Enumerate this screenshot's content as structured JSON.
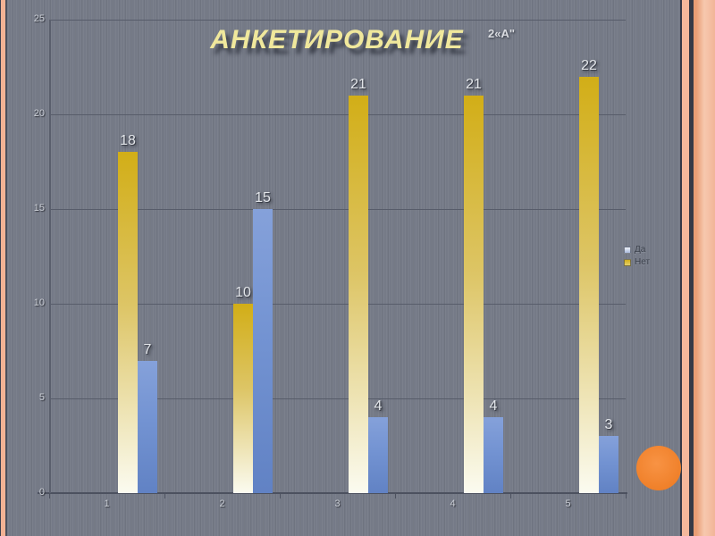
{
  "slide": {
    "title": "АНКЕТИРОВАНИЕ",
    "class_label": "2«А\""
  },
  "legend": {
    "items": [
      {
        "label": "Да",
        "color": "#9db3de"
      },
      {
        "label": "Нет",
        "color": "#d4b01a"
      }
    ]
  },
  "chart_data": {
    "type": "bar",
    "title": "АНКЕТИРОВАНИЕ",
    "categories": [
      "1",
      "2",
      "3",
      "4",
      "5"
    ],
    "series": [
      {
        "name": "Нет",
        "values": [
          18,
          10,
          21,
          21,
          22
        ],
        "color_top": "#d2ae17",
        "color_mid": "#ddc566",
        "color_bottom": "#fbfbf0"
      },
      {
        "name": "Да",
        "values": [
          7,
          15,
          4,
          4,
          3
        ],
        "color_top": "#85a1da",
        "color_mid": "#7393d2",
        "color_bottom": "#6182c4"
      }
    ],
    "ylim": [
      0,
      25
    ],
    "yticks": [
      0,
      5,
      10,
      15,
      20,
      25
    ],
    "grid": true,
    "legend_position": "right",
    "xlabel": "",
    "ylabel": ""
  },
  "theme": {
    "background_gray": "#757a87",
    "gridline": "#575c6a",
    "frame_peach": "#f2b294",
    "circle_orange": "#f5862f",
    "title_yellow": "#f0e89c"
  }
}
